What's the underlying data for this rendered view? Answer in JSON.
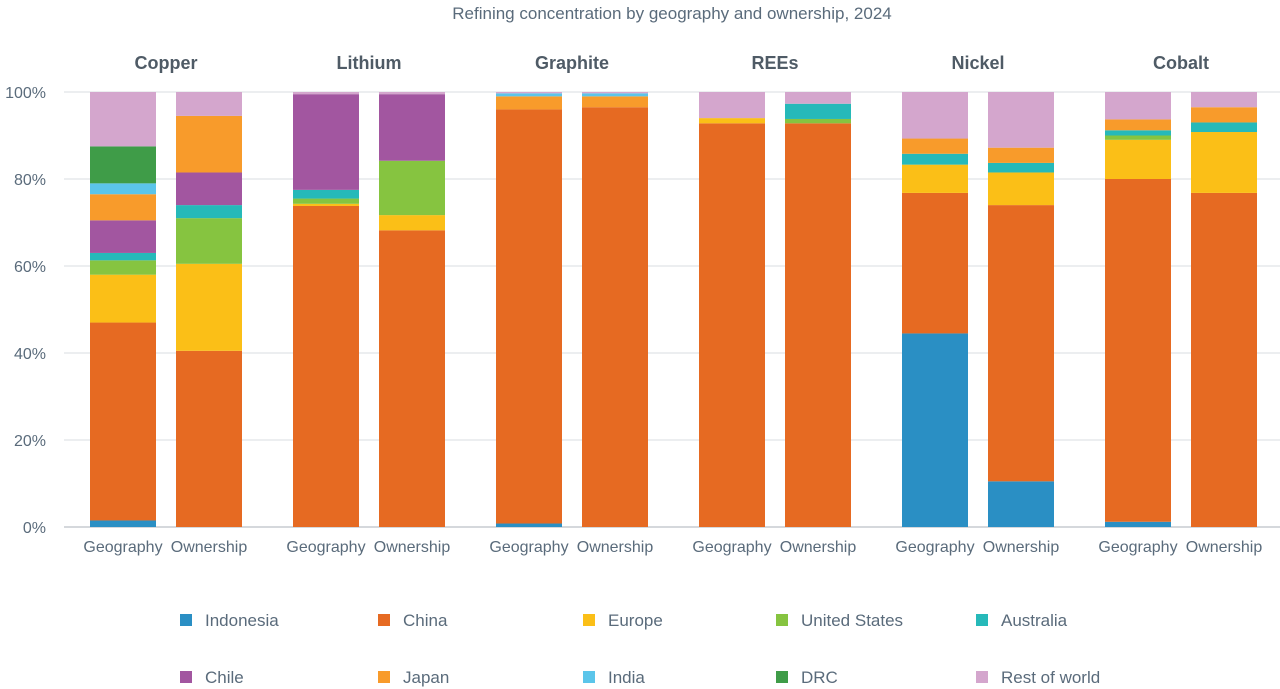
{
  "chart_data": {
    "type": "bar",
    "stacked": true,
    "title": "Refining concentration by geography and ownership, 2024",
    "ylim": [
      0,
      100
    ],
    "yticks": [
      "0%",
      "20%",
      "40%",
      "60%",
      "80%",
      "100%"
    ],
    "grid": true,
    "legend_position": "bottom",
    "groups": [
      "Copper",
      "Lithium",
      "Graphite",
      "REEs",
      "Nickel",
      "Cobalt"
    ],
    "bar_labels": [
      "Geography",
      "Ownership"
    ],
    "series": [
      {
        "name": "Indonesia",
        "color": "#2a8fc4",
        "values": [
          [
            1.5,
            0
          ],
          [
            0,
            0
          ],
          [
            0.8,
            0
          ],
          [
            0,
            0
          ],
          [
            44.5,
            10.5
          ],
          [
            1.2,
            0
          ]
        ]
      },
      {
        "name": "China",
        "color": "#e66a22",
        "values": [
          [
            45.5,
            40.5
          ],
          [
            73.8,
            68.2
          ],
          [
            95.2,
            96.5
          ],
          [
            92.8,
            92.8
          ],
          [
            32.3,
            63.5
          ],
          [
            78.8,
            76.8
          ]
        ]
      },
      {
        "name": "Europe",
        "color": "#fbbf17",
        "values": [
          [
            11,
            20
          ],
          [
            0.5,
            3.5
          ],
          [
            0,
            0
          ],
          [
            1.2,
            0
          ],
          [
            6.5,
            7.5
          ],
          [
            9,
            14
          ]
        ]
      },
      {
        "name": "United States",
        "color": "#86c440",
        "values": [
          [
            3.3,
            10.5
          ],
          [
            1.2,
            12.5
          ],
          [
            0,
            0
          ],
          [
            0,
            1
          ],
          [
            0,
            0
          ],
          [
            1,
            0
          ]
        ]
      },
      {
        "name": "Australia",
        "color": "#26b9b9",
        "values": [
          [
            1.7,
            3
          ],
          [
            2,
            0
          ],
          [
            0,
            0
          ],
          [
            0,
            3.5
          ],
          [
            2.5,
            2.2
          ],
          [
            1.2,
            2.2
          ]
        ]
      },
      {
        "name": "Chile",
        "color": "#a256a0",
        "values": [
          [
            7.5,
            7.5
          ],
          [
            22,
            15.3
          ],
          [
            0,
            0
          ],
          [
            0,
            0
          ],
          [
            0,
            0
          ],
          [
            0,
            0
          ]
        ]
      },
      {
        "name": "Japan",
        "color": "#f89b2b",
        "values": [
          [
            6,
            13
          ],
          [
            0,
            0
          ],
          [
            3,
            2.5
          ],
          [
            0,
            0
          ],
          [
            3.5,
            3.5
          ],
          [
            2.5,
            3.5
          ]
        ]
      },
      {
        "name": "India",
        "color": "#5bc5ea",
        "values": [
          [
            2.5,
            0
          ],
          [
            0,
            0
          ],
          [
            0.7,
            0.7
          ],
          [
            0,
            0
          ],
          [
            0,
            0
          ],
          [
            0,
            0
          ]
        ]
      },
      {
        "name": "DRC",
        "color": "#3f9c48",
        "values": [
          [
            8.5,
            0
          ],
          [
            0,
            0
          ],
          [
            0,
            0
          ],
          [
            0,
            0
          ],
          [
            0,
            0
          ],
          [
            0,
            0
          ]
        ]
      },
      {
        "name": "Rest of world",
        "color": "#d4a6cd",
        "values": [
          [
            12.5,
            5.5
          ],
          [
            0.5,
            0.5
          ],
          [
            0.3,
            0.3
          ],
          [
            6,
            2.7
          ],
          [
            10.7,
            12.8
          ],
          [
            6.3,
            3.5
          ]
        ]
      }
    ]
  }
}
